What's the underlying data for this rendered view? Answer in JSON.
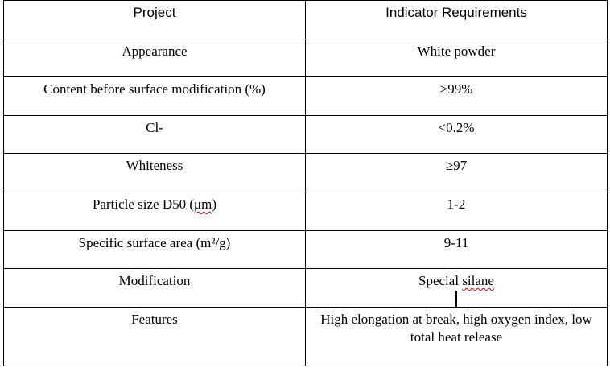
{
  "table": {
    "header": {
      "project": "Project",
      "indicator": "Indicator Requirements"
    },
    "rows": [
      {
        "project": "Appearance",
        "indicator": "White powder"
      },
      {
        "project": "Content before surface modification (%)",
        "indicator": ">99%"
      },
      {
        "project": "Cl-",
        "indicator": "<0.2%"
      },
      {
        "project": "Whiteness",
        "indicator": "≥97"
      },
      {
        "project_pre": "Particle size D50 (",
        "project_unit": "μm",
        "project_post": ")",
        "indicator": "1-2"
      },
      {
        "project": "Specific surface area (m²/g)",
        "indicator": "9-11"
      },
      {
        "project": "Modification",
        "indicator_pre": "Special ",
        "indicator_spell": "silane"
      },
      {
        "project": "Features",
        "indicator": "High elongation at break, high oxygen index, low total heat release"
      }
    ]
  }
}
